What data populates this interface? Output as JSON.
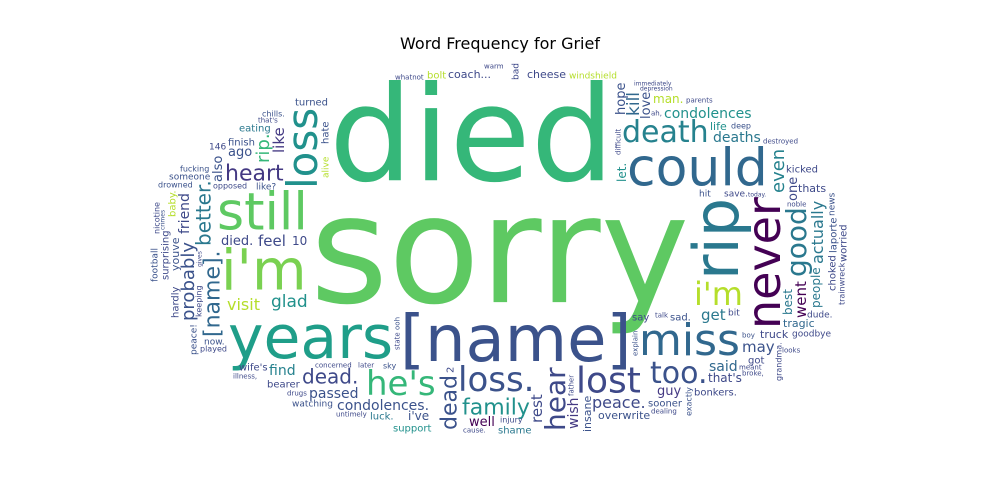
{
  "chart_data": {
    "type": "wordcloud",
    "title": "Word Frequency for Grief",
    "colormap": "viridis",
    "background": "#ffffff",
    "words": [
      {
        "text": "sorry",
        "size": 150,
        "color": "#5ec962"
      },
      {
        "text": "died",
        "size": 132,
        "color": "#35b779"
      },
      {
        "text": "[name]",
        "size": 64,
        "color": "#3b528b"
      },
      {
        "text": "rip",
        "size": 62,
        "color": "#2a788e"
      },
      {
        "text": "years",
        "size": 60,
        "color": "#1f9e89"
      },
      {
        "text": "i'm",
        "size": 56,
        "color": "#7ad151"
      },
      {
        "text": "could",
        "size": 52,
        "color": "#31688e"
      },
      {
        "text": "still",
        "size": 52,
        "color": "#5ec962"
      },
      {
        "text": "never",
        "size": 46,
        "color": "#440154"
      },
      {
        "text": "miss",
        "size": 44,
        "color": "#31688e"
      },
      {
        "text": "loss",
        "size": 42,
        "color": "#21918c"
      },
      {
        "text": "loss.",
        "size": 34,
        "color": "#3b528b"
      },
      {
        "text": "lost",
        "size": 36,
        "color": "#3e4989"
      },
      {
        "text": "he's",
        "size": 34,
        "color": "#35b779"
      },
      {
        "text": "death",
        "size": 30,
        "color": "#26828e"
      },
      {
        "text": "i'm",
        "size": 32,
        "color": "#b5de2b"
      },
      {
        "text": "too.",
        "size": 30,
        "color": "#3b528b"
      },
      {
        "text": "good",
        "size": 28,
        "color": "#2a788e"
      },
      {
        "text": "hear",
        "size": 28,
        "color": "#3e4989"
      },
      {
        "text": "dead",
        "size": 22,
        "color": "#3b528b"
      },
      {
        "text": "[name].",
        "size": 22,
        "color": "#31688e"
      },
      {
        "text": "heart",
        "size": 22,
        "color": "#443983"
      },
      {
        "text": "family",
        "size": 22,
        "color": "#21918c"
      },
      {
        "text": "better.",
        "size": 20,
        "color": "#2a788e"
      },
      {
        "text": "dead.",
        "size": 20,
        "color": "#3e4989"
      },
      {
        "text": "probably",
        "size": 18,
        "color": "#3b528b"
      },
      {
        "text": "rip.",
        "size": 18,
        "color": "#35b779"
      },
      {
        "text": "even",
        "size": 18,
        "color": "#26828e"
      },
      {
        "text": "glad",
        "size": 17,
        "color": "#21918c"
      },
      {
        "text": "kill",
        "size": 17,
        "color": "#31688e"
      },
      {
        "text": "actually",
        "size": 16,
        "color": "#2a788e"
      },
      {
        "text": "peace.",
        "size": 16,
        "color": "#3e4989"
      },
      {
        "text": "visit",
        "size": 16,
        "color": "#b5de2b"
      },
      {
        "text": "went",
        "size": 15,
        "color": "#440154"
      },
      {
        "text": "condolences.",
        "size": 14,
        "color": "#3b528b"
      },
      {
        "text": "condolences",
        "size": 14,
        "color": "#21918c"
      },
      {
        "text": "get",
        "size": 15,
        "color": "#2a788e"
      },
      {
        "text": "feel",
        "size": 15,
        "color": "#3e4989"
      },
      {
        "text": "may",
        "size": 15,
        "color": "#3b528b"
      },
      {
        "text": "like",
        "size": 15,
        "color": "#443983"
      },
      {
        "text": "rest",
        "size": 15,
        "color": "#3e4989"
      },
      {
        "text": "passed",
        "size": 14,
        "color": "#3b528b"
      },
      {
        "text": "deaths",
        "size": 14,
        "color": "#2a788e"
      },
      {
        "text": "said",
        "size": 14,
        "color": "#31688e"
      },
      {
        "text": "find",
        "size": 14,
        "color": "#26828e"
      },
      {
        "text": "hope",
        "size": 13,
        "color": "#3b528b"
      },
      {
        "text": "wish",
        "size": 14,
        "color": "#443983"
      },
      {
        "text": "friend",
        "size": 14,
        "color": "#3e4989"
      },
      {
        "text": "died.",
        "size": 13,
        "color": "#3e4989"
      },
      {
        "text": "guy",
        "size": 13,
        "color": "#443983"
      },
      {
        "text": "ago",
        "size": 13,
        "color": "#3b528b"
      },
      {
        "text": "well",
        "size": 13,
        "color": "#440154"
      },
      {
        "text": "love",
        "size": 13,
        "color": "#3b528b"
      },
      {
        "text": "best",
        "size": 12,
        "color": "#2a788e"
      },
      {
        "text": "also",
        "size": 13,
        "color": "#3b528b"
      },
      {
        "text": "one",
        "size": 13,
        "color": "#3e4989"
      },
      {
        "text": "man.",
        "size": 12,
        "color": "#b5de2b"
      },
      {
        "text": "people",
        "size": 12,
        "color": "#2a788e"
      },
      {
        "text": "let.",
        "size": 12,
        "color": "#21918c"
      },
      {
        "text": "that's",
        "size": 12,
        "color": "#3e4989"
      },
      {
        "text": "i've",
        "size": 12,
        "color": "#3b528b"
      },
      {
        "text": "truck",
        "size": 11,
        "color": "#3e4989"
      },
      {
        "text": "life",
        "size": 11,
        "color": "#21918c"
      },
      {
        "text": "coach...",
        "size": 11,
        "color": "#3e4989"
      },
      {
        "text": "overwrite",
        "size": 11,
        "color": "#3b528b"
      },
      {
        "text": "tragic",
        "size": 11,
        "color": "#31688e"
      },
      {
        "text": "youve",
        "size": 11,
        "color": "#3b528b"
      },
      {
        "text": "cheese",
        "size": 11,
        "color": "#3e4989"
      },
      {
        "text": "thats",
        "size": 11,
        "color": "#3e4989"
      },
      {
        "text": "sad.",
        "size": 10,
        "color": "#3b528b"
      },
      {
        "text": "insane",
        "size": 11,
        "color": "#3b528b"
      },
      {
        "text": "10",
        "size": 12,
        "color": "#3e4989"
      },
      {
        "text": "luck.",
        "size": 10,
        "color": "#2a788e"
      },
      {
        "text": "hate",
        "size": 10,
        "color": "#3b528b"
      },
      {
        "text": "say",
        "size": 10,
        "color": "#3e4989"
      },
      {
        "text": "turned",
        "size": 10,
        "color": "#3b528b"
      },
      {
        "text": "got",
        "size": 10,
        "color": "#3e4989"
      },
      {
        "text": "eating",
        "size": 10,
        "color": "#2a788e"
      },
      {
        "text": "bearer",
        "size": 10,
        "color": "#3e4989"
      },
      {
        "text": "sooner",
        "size": 10,
        "color": "#3b528b"
      },
      {
        "text": "wife's",
        "size": 10,
        "color": "#3e4989"
      },
      {
        "text": "bonkers.",
        "size": 10,
        "color": "#3e4989"
      },
      {
        "text": "laporte",
        "size": 10,
        "color": "#3b528b"
      },
      {
        "text": "shame",
        "size": 10,
        "color": "#2a788e"
      },
      {
        "text": "surprising",
        "size": 10,
        "color": "#3e4989"
      },
      {
        "text": "finish",
        "size": 10,
        "color": "#3b528b"
      },
      {
        "text": "kicked",
        "size": 10,
        "color": "#3e4989"
      },
      {
        "text": "choked",
        "size": 10,
        "color": "#3e4989"
      },
      {
        "text": "baby.",
        "size": 10,
        "color": "#b5de2b"
      },
      {
        "text": "bolt",
        "size": 10,
        "color": "#b5de2b"
      },
      {
        "text": "support",
        "size": 10,
        "color": "#21918c"
      },
      {
        "text": "hardly",
        "size": 10,
        "color": "#3e4989"
      },
      {
        "text": "worried",
        "size": 10,
        "color": "#3e4989"
      },
      {
        "text": "someone",
        "size": 9,
        "color": "#3b528b"
      },
      {
        "text": "bit",
        "size": 9,
        "color": "#3e4989"
      },
      {
        "text": "bad",
        "size": 9,
        "color": "#3e4989"
      },
      {
        "text": "alive",
        "size": 9,
        "color": "#b5de2b"
      },
      {
        "text": "like?",
        "size": 9,
        "color": "#3b528b"
      },
      {
        "text": "windshield",
        "size": 9,
        "color": "#b5de2b"
      },
      {
        "text": "football",
        "size": 9,
        "color": "#3b528b"
      },
      {
        "text": "now.",
        "size": 9,
        "color": "#3b528b"
      },
      {
        "text": "dude.",
        "size": 9,
        "color": "#3e4989"
      },
      {
        "text": "hit",
        "size": 9,
        "color": "#3b528b"
      },
      {
        "text": "save.",
        "size": 9,
        "color": "#3e4989"
      },
      {
        "text": "news",
        "size": 9,
        "color": "#3b528b"
      },
      {
        "text": "watching",
        "size": 9,
        "color": "#3b528b"
      },
      {
        "text": "goodbye",
        "size": 9,
        "color": "#3e4989"
      },
      {
        "text": "keeping",
        "size": 8,
        "color": "#3e4989"
      },
      {
        "text": "grandma.",
        "size": 8,
        "color": "#3e4989"
      },
      {
        "text": "nicotine",
        "size": 8,
        "color": "#3e4989"
      },
      {
        "text": "played",
        "size": 8,
        "color": "#3e4989"
      },
      {
        "text": "trainwreck",
        "size": 8,
        "color": "#3e4989"
      },
      {
        "text": "injury",
        "size": 8,
        "color": "#3e4989"
      },
      {
        "text": "sky",
        "size": 8,
        "color": "#3b528b"
      },
      {
        "text": "drowned",
        "size": 8,
        "color": "#3b528b"
      },
      {
        "text": "fucking",
        "size": 8,
        "color": "#3b528b"
      },
      {
        "text": "deep",
        "size": 8,
        "color": "#3b528b"
      },
      {
        "text": "exactly",
        "size": 8,
        "color": "#3b528b"
      },
      {
        "text": "chills.",
        "size": 8,
        "color": "#3b528b"
      },
      {
        "text": "opposed",
        "size": 8,
        "color": "#3e4989"
      },
      {
        "text": "peace!",
        "size": 9,
        "color": "#3b528b"
      },
      {
        "text": "146",
        "size": 9,
        "color": "#3e4989"
      },
      {
        "text": "2",
        "size": 10,
        "color": "#3e4989"
      },
      {
        "text": "drugs",
        "size": 7,
        "color": "#3e4989"
      },
      {
        "text": "boy",
        "size": 7,
        "color": "#3b528b"
      },
      {
        "text": "explain",
        "size": 7,
        "color": "#3b528b"
      },
      {
        "text": "ooh",
        "size": 7,
        "color": "#3b528b"
      },
      {
        "text": "father",
        "size": 7,
        "color": "#3e4989"
      },
      {
        "text": "crimes",
        "size": 6,
        "color": "#3b528b"
      },
      {
        "text": "meant",
        "size": 7,
        "color": "#3e4989"
      },
      {
        "text": "depression",
        "size": 6,
        "color": "#3e4989"
      },
      {
        "text": "parents",
        "size": 7,
        "color": "#3e4989"
      },
      {
        "text": "concerned",
        "size": 7,
        "color": "#3e4989"
      },
      {
        "text": "noble",
        "size": 7,
        "color": "#3e4989"
      },
      {
        "text": "dealing",
        "size": 7,
        "color": "#3e4989"
      },
      {
        "text": "whatnot",
        "size": 7,
        "color": "#3e4989"
      },
      {
        "text": "untimely",
        "size": 7,
        "color": "#3e4989"
      },
      {
        "text": "warm",
        "size": 7,
        "color": "#3e4989"
      },
      {
        "text": "today.",
        "size": 6,
        "color": "#3e4989"
      },
      {
        "text": "illness,",
        "size": 7,
        "color": "#3e4989"
      },
      {
        "text": "destroyed",
        "size": 7,
        "color": "#3e4989"
      },
      {
        "text": "talk",
        "size": 7,
        "color": "#3e4989"
      },
      {
        "text": "difficult",
        "size": 7,
        "color": "#3e4989"
      },
      {
        "text": "later",
        "size": 7,
        "color": "#3e4989"
      },
      {
        "text": "ah,",
        "size": 7,
        "color": "#3e4989"
      },
      {
        "text": "looks",
        "size": 7,
        "color": "#3e4989"
      },
      {
        "text": "state",
        "size": 7,
        "color": "#3e4989"
      },
      {
        "text": "gives",
        "size": 6,
        "color": "#3e4989"
      },
      {
        "text": "broke,",
        "size": 7,
        "color": "#3e4989"
      },
      {
        "text": "immediately",
        "size": 6,
        "color": "#3e4989"
      },
      {
        "text": "that's",
        "size": 7,
        "color": "#3e4989"
      },
      {
        "text": "cause.",
        "size": 7,
        "color": "#3e4989"
      }
    ]
  }
}
